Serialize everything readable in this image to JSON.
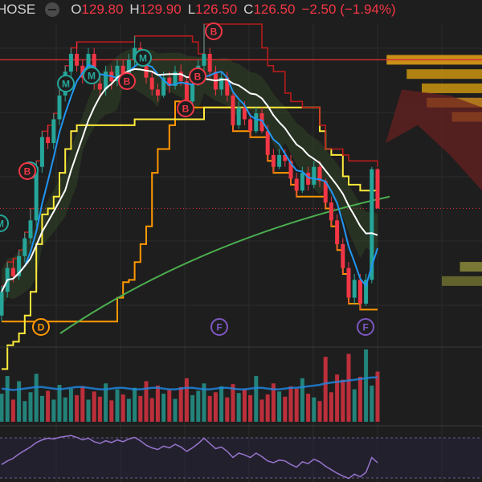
{
  "header": {
    "symbol": "HOSE",
    "open_label": "O",
    "open": "129.80",
    "high_label": "H",
    "high": "129.90",
    "low_label": "L",
    "low": "126.50",
    "close_label": "C",
    "close": "126.50",
    "change": "−2.50 (−1.94%)"
  },
  "colors": {
    "background": "#1e1e1e",
    "up": "#26a69a",
    "down": "#f23645",
    "ma_fast": "#2196f3",
    "ma_slow": "#ffffff",
    "ma_long": "#4caf50",
    "channel_upper": "#ffeb3b",
    "channel_lower": "#ff9800",
    "resistance": "#d32f2f",
    "rsi": "#9575cd"
  },
  "chart_data": {
    "type": "candlestick",
    "y_min": 116,
    "y_max": 142,
    "last_price": 126.5,
    "resistance_level": 139,
    "candles": [
      [
        117.5,
        119.5,
        117.0,
        120.0
      ],
      [
        119.5,
        121.5,
        119.0,
        122.0
      ],
      [
        121.5,
        120.8,
        120.3,
        122.3
      ],
      [
        120.8,
        122.5,
        120.5,
        123.0
      ],
      [
        122.5,
        124.0,
        122.0,
        124.5
      ],
      [
        124.0,
        125.5,
        123.5,
        126.5
      ],
      [
        125.5,
        130.0,
        125.0,
        130.5
      ],
      [
        130.0,
        132.5,
        129.5,
        133.0
      ],
      [
        132.5,
        132.0,
        131.5,
        133.5
      ],
      [
        132.0,
        134.0,
        131.5,
        134.5
      ],
      [
        134.0,
        136.0,
        133.5,
        136.5
      ],
      [
        136.0,
        138.0,
        135.5,
        138.5
      ],
      [
        138.0,
        139.5,
        137.5,
        140.0
      ],
      [
        139.5,
        138.5,
        138.0,
        140.5
      ],
      [
        138.5,
        137.5,
        137.0,
        139.0
      ],
      [
        137.5,
        139.5,
        137.2,
        140.0
      ],
      [
        139.5,
        137.0,
        136.5,
        140.0
      ],
      [
        137.0,
        136.5,
        135.8,
        137.5
      ],
      [
        136.5,
        138.0,
        136.0,
        138.5
      ],
      [
        138.0,
        137.2,
        136.5,
        138.5
      ],
      [
        137.2,
        138.5,
        136.8,
        139.0
      ],
      [
        138.5,
        137.5,
        137.0,
        139.0
      ],
      [
        137.5,
        139.0,
        137.0,
        139.5
      ],
      [
        139.0,
        140.0,
        138.5,
        141.0
      ],
      [
        140.0,
        139.0,
        138.5,
        140.5
      ],
      [
        139.0,
        137.5,
        137.0,
        139.5
      ],
      [
        137.5,
        136.5,
        136.0,
        138.0
      ],
      [
        136.5,
        136.0,
        135.5,
        137.0
      ],
      [
        136.0,
        137.5,
        135.8,
        138.0
      ],
      [
        137.5,
        136.8,
        136.2,
        138.0
      ],
      [
        136.8,
        138.0,
        136.5,
        138.5
      ],
      [
        138.0,
        137.2,
        136.8,
        138.6
      ],
      [
        137.2,
        135.5,
        135.0,
        137.5
      ],
      [
        135.5,
        137.0,
        135.2,
        137.5
      ],
      [
        137.0,
        138.5,
        136.8,
        139.0
      ],
      [
        138.5,
        139.5,
        138.0,
        142.0
      ],
      [
        139.5,
        138.0,
        137.5,
        140.0
      ],
      [
        138.0,
        136.5,
        136.0,
        138.5
      ],
      [
        136.5,
        137.5,
        136.0,
        138.0
      ],
      [
        137.5,
        136.0,
        135.5,
        138.0
      ],
      [
        136.0,
        133.5,
        133.0,
        136.2
      ],
      [
        133.5,
        135.0,
        133.2,
        135.5
      ],
      [
        135.0,
        134.0,
        133.5,
        135.5
      ],
      [
        134.0,
        133.0,
        132.5,
        134.5
      ],
      [
        133.0,
        134.5,
        132.8,
        135.0
      ],
      [
        134.5,
        133.0,
        132.8,
        135.0
      ],
      [
        133.0,
        131.0,
        130.5,
        133.5
      ],
      [
        131.0,
        130.0,
        129.5,
        131.5
      ],
      [
        130.0,
        131.0,
        129.8,
        131.5
      ],
      [
        131.0,
        130.5,
        130.0,
        131.5
      ],
      [
        130.5,
        129.0,
        128.5,
        131.0
      ],
      [
        129.0,
        128.0,
        127.5,
        129.5
      ],
      [
        128.0,
        129.5,
        127.8,
        130.0
      ],
      [
        129.5,
        128.5,
        128.0,
        130.0
      ],
      [
        128.5,
        130.0,
        128.2,
        130.5
      ],
      [
        130.0,
        128.8,
        128.3,
        130.5
      ],
      [
        128.8,
        127.0,
        126.5,
        129.0
      ],
      [
        127.0,
        125.5,
        125.0,
        127.5
      ],
      [
        125.5,
        123.5,
        123.0,
        126.0
      ],
      [
        123.5,
        121.5,
        121.0,
        124.0
      ],
      [
        121.5,
        119.0,
        118.5,
        122.0
      ],
      [
        119.0,
        120.5,
        118.5,
        121.0
      ],
      [
        120.5,
        118.5,
        118.0,
        121.0
      ],
      [
        118.5,
        120.5,
        118.3,
        121.0
      ],
      [
        120.5,
        129.8,
        120.2,
        130.0
      ],
      [
        129.8,
        126.5,
        126.5,
        129.9
      ]
    ],
    "volume": [
      38,
      62,
      30,
      55,
      28,
      40,
      65,
      35,
      42,
      30,
      50,
      33,
      45,
      36,
      48,
      30,
      41,
      34,
      52,
      29,
      44,
      37,
      31,
      46,
      35,
      55,
      32,
      49,
      38,
      43,
      31,
      47,
      59,
      36,
      42,
      52,
      35,
      40,
      48,
      33,
      51,
      39,
      44,
      36,
      62,
      30,
      37,
      52,
      41,
      34,
      48,
      45,
      59,
      38,
      33,
      28,
      88,
      40,
      64,
      57,
      92,
      44,
      61,
      98,
      49,
      68
    ],
    "volume_ma": [
      45,
      44,
      43,
      44,
      45,
      46,
      47,
      47,
      46,
      45,
      44,
      45,
      46,
      47,
      47,
      46,
      45,
      44,
      44,
      45,
      46,
      46,
      45,
      44,
      44,
      45,
      46,
      46,
      45,
      44,
      44,
      45,
      46,
      46,
      45,
      44,
      44,
      45,
      46,
      46,
      45,
      44,
      44,
      45,
      46,
      46,
      45,
      44,
      44,
      45,
      46,
      46,
      47,
      48,
      49,
      50,
      52,
      53,
      54,
      55,
      56,
      57,
      58,
      59,
      60,
      60
    ],
    "rsi": [
      40,
      44,
      47,
      52,
      56,
      60,
      65,
      68,
      70,
      69,
      71,
      72,
      73,
      71,
      68,
      70,
      66,
      64,
      67,
      65,
      68,
      66,
      69,
      71,
      67,
      62,
      59,
      57,
      61,
      59,
      63,
      60,
      55,
      59,
      64,
      70,
      64,
      58,
      60,
      55,
      48,
      53,
      51,
      48,
      53,
      49,
      44,
      42,
      45,
      44,
      40,
      37,
      43,
      41,
      46,
      43,
      38,
      34,
      30,
      27,
      24,
      29,
      26,
      31,
      48,
      42
    ],
    "markers": [
      {
        "label": "M",
        "color": "#26a69a"
      },
      {
        "label": "M",
        "color": "#26a69a"
      },
      {
        "label": "M",
        "color": "#26a69a"
      },
      {
        "label": "M",
        "color": "#26a69a"
      },
      {
        "label": "M",
        "color": "#26a69a"
      },
      {
        "label": "B",
        "color": "#f23645"
      },
      {
        "label": "B",
        "color": "#f23645"
      },
      {
        "label": "B",
        "color": "#f23645"
      },
      {
        "label": "B",
        "color": "#f23645"
      },
      {
        "label": "B",
        "color": "#f23645"
      },
      {
        "label": "D",
        "color": "#ff9800"
      },
      {
        "label": "F",
        "color": "#7e57c2"
      },
      {
        "label": "F",
        "color": "#7e57c2"
      }
    ],
    "volume_profile": [
      {
        "price": 139.0,
        "size": 0.95,
        "color": "#e8a317"
      },
      {
        "price": 137.8,
        "size": 0.75,
        "color": "#c9940f"
      },
      {
        "price": 136.6,
        "size": 0.6,
        "color": "#c9940f"
      },
      {
        "price": 135.4,
        "size": 0.55,
        "color": "#c8871f"
      },
      {
        "price": 134.2,
        "size": 0.3,
        "color": "#c8871f"
      },
      {
        "price": 121.6,
        "size": 0.22,
        "color": "#8a8a3a"
      },
      {
        "price": 120.4,
        "size": 0.4,
        "color": "#6f6f30"
      }
    ]
  }
}
